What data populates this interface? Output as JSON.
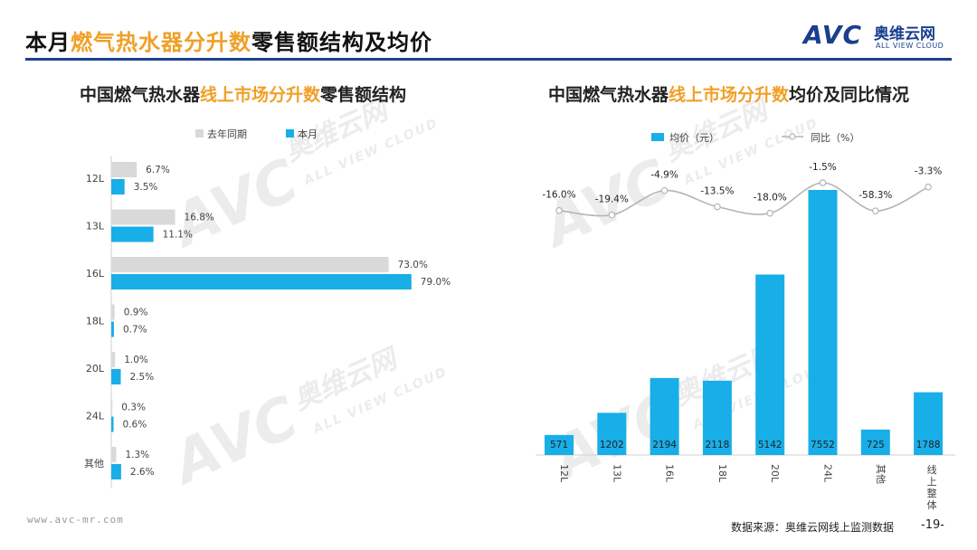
{
  "slide": {
    "title_pre": "本月",
    "title_highlight": "燃气热水器分升数",
    "title_post": "零售额结构及均价"
  },
  "logo": {
    "mark": "AVC",
    "cn": "奥维云网",
    "en": "ALL VIEW CLOUD"
  },
  "watermark": {
    "mark": "AVC",
    "cn": "奥维云网",
    "en": "ALL VIEW CLOUD"
  },
  "left_chart_title": {
    "pre": "中国燃气热水器",
    "highlight": "线上市场分升数",
    "post": "零售额结构"
  },
  "right_chart_title": {
    "pre": "中国燃气热水器",
    "highlight": "线上市场分升数",
    "post": "均价及同比情况"
  },
  "colors": {
    "accent": "#f0a028",
    "brand": "#1a3f8f",
    "current": "#18aee8",
    "previous": "#d9d9d9",
    "line": "#b4b4b4"
  },
  "footer": {
    "url": "www.avc-mr.com",
    "source": "数据来源：奥维云网线上监测数据",
    "page": "-19-"
  },
  "chart_data": [
    {
      "type": "bar",
      "orientation": "horizontal",
      "categories": [
        "12L",
        "13L",
        "16L",
        "18L",
        "20L",
        "24L",
        "其他"
      ],
      "series": [
        {
          "name": "去年同期",
          "values": [
            6.7,
            16.8,
            73.0,
            0.9,
            1.0,
            0.3,
            1.3
          ],
          "labels": [
            "6.7%",
            "16.8%",
            "73.0%",
            "0.9%",
            "1.0%",
            "0.3%",
            "1.3%"
          ]
        },
        {
          "name": "本月",
          "values": [
            3.5,
            11.1,
            79.0,
            0.7,
            2.5,
            0.6,
            2.6
          ],
          "labels": [
            "3.5%",
            "11.1%",
            "79.0%",
            "0.7%",
            "2.5%",
            "0.6%",
            "2.6%"
          ]
        }
      ],
      "legend_position": "top",
      "grid": false
    },
    {
      "type": "bar",
      "categories": [
        "12L",
        "13L",
        "16L",
        "18L",
        "20L",
        "24L",
        "其他",
        "线上整体"
      ],
      "bar_series": {
        "name": "均价（元）",
        "values": [
          571,
          1202,
          2194,
          2118,
          5142,
          7552,
          725,
          1788
        ]
      },
      "line_series": {
        "name": "同比（%）",
        "values": [
          -16.0,
          -19.4,
          -4.9,
          -13.5,
          -18.0,
          -1.5,
          -58.3,
          -3.3
        ],
        "labels": [
          "-16.0%",
          "-19.4%",
          "-4.9%",
          "-13.5%",
          "-18.0%",
          "-1.5%",
          "-58.3%",
          "-3.3%"
        ]
      },
      "legend_position": "top",
      "grid": false
    }
  ]
}
